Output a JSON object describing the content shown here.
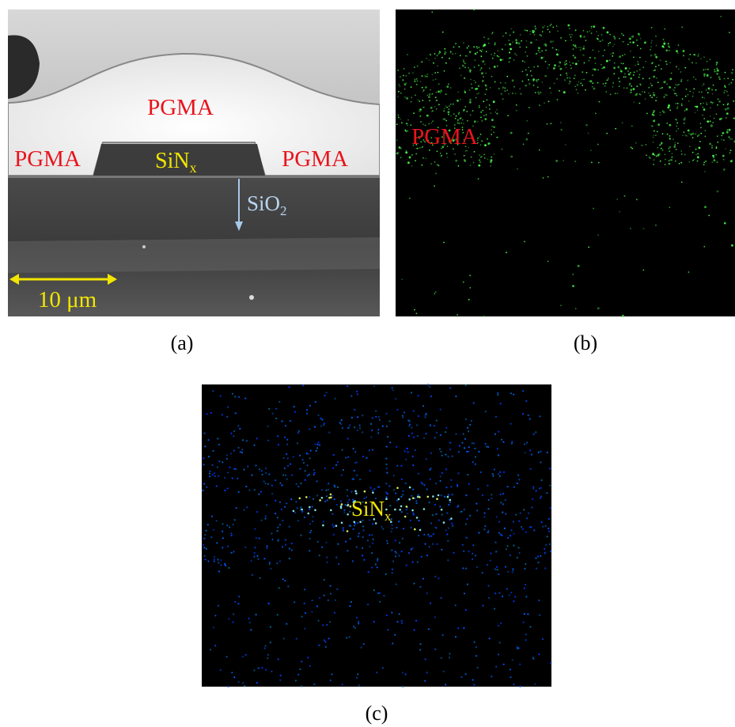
{
  "panel_a": {
    "labels": {
      "pgma_top": "PGMA",
      "pgma_left": "PGMA",
      "pgma_right": "PGMA",
      "sinx": {
        "main": "SiN",
        "sub": "x"
      },
      "sio2": {
        "main": "SiO",
        "sub": "2"
      },
      "scale": "10 μm"
    },
    "caption": "(a)"
  },
  "panel_b": {
    "labels": {
      "pgma": "PGMA"
    },
    "caption": "(b)"
  },
  "panel_c": {
    "labels": {
      "sinx": {
        "main": "SiN",
        "sub": "x"
      }
    },
    "caption": "(c)"
  }
}
